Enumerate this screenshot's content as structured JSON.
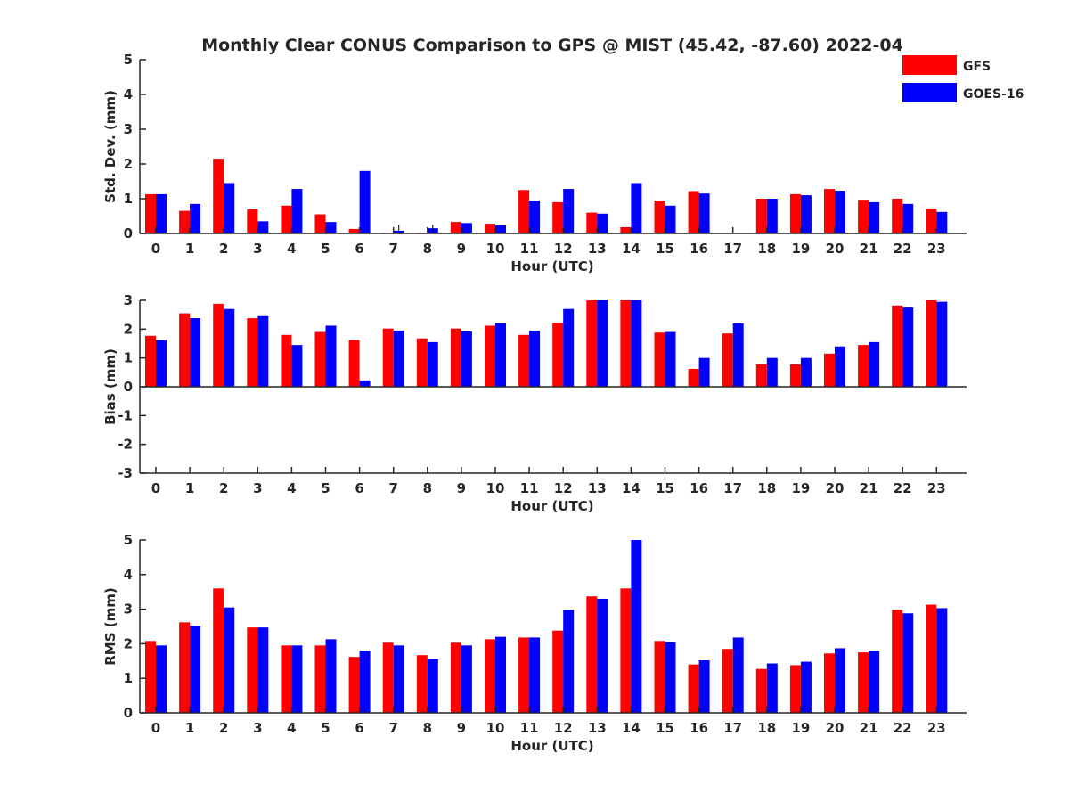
{
  "figure": {
    "title": "Monthly Clear CONUS Comparison to GPS @ MIST (45.42, -87.60) 2022-04"
  },
  "legend": {
    "placement": "top-right",
    "items": [
      {
        "label": "GFS",
        "color": "#ff0000"
      },
      {
        "label": "GOES-16",
        "color": "#0000ff"
      }
    ]
  },
  "chart_data": [
    {
      "type": "bar",
      "xlabel": "Hour (UTC)",
      "ylabel": "Std. Dev. (mm)",
      "ylim": [
        0,
        5
      ],
      "yticks": [
        0,
        1,
        2,
        3,
        4,
        5
      ],
      "categories": [
        "0",
        "1",
        "2",
        "3",
        "4",
        "5",
        "6",
        "7",
        "8",
        "9",
        "10",
        "11",
        "12",
        "13",
        "14",
        "15",
        "16",
        "17",
        "18",
        "19",
        "20",
        "21",
        "22",
        "23"
      ],
      "series": [
        {
          "name": "GFS",
          "color": "#ff0000",
          "values": [
            1.13,
            0.65,
            2.15,
            0.7,
            0.8,
            0.55,
            0.13,
            0.02,
            0.02,
            0.33,
            0.28,
            1.25,
            0.9,
            0.6,
            0.18,
            0.95,
            1.22,
            0.0,
            1.0,
            1.13,
            1.28,
            0.97,
            1.0,
            0.72
          ]
        },
        {
          "name": "GOES-16",
          "color": "#0000ff",
          "values": [
            1.13,
            0.85,
            1.45,
            0.35,
            1.28,
            0.33,
            1.8,
            0.08,
            0.15,
            0.3,
            0.23,
            0.95,
            1.28,
            0.57,
            1.45,
            0.8,
            1.15,
            0.0,
            1.0,
            1.1,
            1.23,
            0.9,
            0.85,
            0.62
          ]
        }
      ],
      "errorbars": [
        {
          "series": "GOES-16",
          "category": "7",
          "value": 0.25
        },
        {
          "series": "GOES-16",
          "category": "8",
          "value": 0.25
        }
      ]
    },
    {
      "type": "bar",
      "xlabel": "Hour (UTC)",
      "ylabel": "Bias (mm)",
      "ylim": [
        -3,
        3
      ],
      "yticks": [
        -3,
        -2,
        -1,
        0,
        1,
        2,
        3
      ],
      "categories": [
        "0",
        "1",
        "2",
        "3",
        "4",
        "5",
        "6",
        "7",
        "8",
        "9",
        "10",
        "11",
        "12",
        "13",
        "14",
        "15",
        "16",
        "17",
        "18",
        "19",
        "20",
        "21",
        "22",
        "23"
      ],
      "series": [
        {
          "name": "GFS",
          "color": "#ff0000",
          "values": [
            1.77,
            2.55,
            2.88,
            2.38,
            1.8,
            1.9,
            1.62,
            2.02,
            1.68,
            2.02,
            2.12,
            1.8,
            2.22,
            3.0,
            3.0,
            1.88,
            0.62,
            1.85,
            0.78,
            0.78,
            1.15,
            1.45,
            2.82,
            3.0
          ]
        },
        {
          "name": "GOES-16",
          "color": "#0000ff",
          "values": [
            1.62,
            2.38,
            2.7,
            2.45,
            1.45,
            2.12,
            0.22,
            1.95,
            1.55,
            1.92,
            2.2,
            1.95,
            2.7,
            3.0,
            3.0,
            1.9,
            1.0,
            2.2,
            1.0,
            1.0,
            1.4,
            1.55,
            2.75,
            2.95
          ]
        }
      ]
    },
    {
      "type": "bar",
      "xlabel": "Hour (UTC)",
      "ylabel": "RMS (mm)",
      "ylim": [
        0,
        5
      ],
      "yticks": [
        0,
        1,
        2,
        3,
        4,
        5
      ],
      "categories": [
        "0",
        "1",
        "2",
        "3",
        "4",
        "5",
        "6",
        "7",
        "8",
        "9",
        "10",
        "11",
        "12",
        "13",
        "14",
        "15",
        "16",
        "17",
        "18",
        "19",
        "20",
        "21",
        "22",
        "23"
      ],
      "series": [
        {
          "name": "GFS",
          "color": "#ff0000",
          "values": [
            2.08,
            2.62,
            3.6,
            2.47,
            1.95,
            1.95,
            1.62,
            2.03,
            1.67,
            2.03,
            2.13,
            2.18,
            2.38,
            3.37,
            3.6,
            2.08,
            1.4,
            1.85,
            1.27,
            1.38,
            1.72,
            1.75,
            2.98,
            3.13
          ]
        },
        {
          "name": "GOES-16",
          "color": "#0000ff",
          "values": [
            1.95,
            2.52,
            3.05,
            2.47,
            1.95,
            2.13,
            1.8,
            1.95,
            1.55,
            1.95,
            2.2,
            2.18,
            2.98,
            3.3,
            5.0,
            2.05,
            1.52,
            2.18,
            1.43,
            1.48,
            1.87,
            1.8,
            2.88,
            3.03
          ]
        }
      ]
    }
  ]
}
